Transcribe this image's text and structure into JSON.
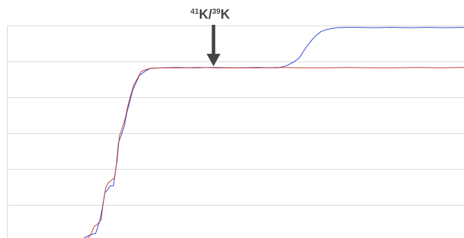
{
  "annotation": {
    "iso_a_mass": "41",
    "iso_a_elem": "K",
    "sep": "/",
    "iso_b_mass": "39",
    "iso_b_elem": "K",
    "color": "#444444"
  },
  "chart_data": {
    "type": "line",
    "title": "",
    "xlabel": "",
    "ylabel": "",
    "grid": true,
    "xlim": [
      0,
      100
    ],
    "ylim": [
      0,
      6
    ],
    "gridlines_y": [
      1,
      2,
      3,
      4,
      5,
      6
    ],
    "annotation_x": 45.2,
    "series": [
      {
        "color": "#2b3fd1",
        "x": [
          15.8,
          17.8,
          18.8,
          19.4,
          20.3,
          20.8,
          21.4,
          22.0,
          22.6,
          23.3,
          23.9,
          24.4,
          25.1,
          25.7,
          26.2,
          26.8,
          27.5,
          28.2,
          29.0,
          30.4,
          31.3,
          33.5,
          37.0,
          41.0,
          45.0,
          50.0,
          55.0,
          59.0,
          60.0,
          61.2,
          62.7,
          63.6,
          64.2,
          65.0,
          66.2,
          67.5,
          68.7,
          70.0,
          71.2,
          72.2,
          74.5,
          76.8,
          80.0,
          84.0,
          88.0,
          92.0,
          96.0,
          100.0
        ],
        "y": [
          0.0,
          0.14,
          0.19,
          0.2,
          0.55,
          0.86,
          1.33,
          1.42,
          1.53,
          1.53,
          2.06,
          2.73,
          2.97,
          3.21,
          3.55,
          3.83,
          4.19,
          4.39,
          4.61,
          4.74,
          4.8,
          4.82,
          4.83,
          4.82,
          4.83,
          4.82,
          4.83,
          4.82,
          4.84,
          4.88,
          4.98,
          5.06,
          5.14,
          5.31,
          5.52,
          5.71,
          5.83,
          5.89,
          5.92,
          5.94,
          5.95,
          5.95,
          5.94,
          5.95,
          5.94,
          5.95,
          5.94,
          5.95
        ]
      },
      {
        "color": "#c0392b",
        "x": [
          17.0,
          18.2,
          19.1,
          19.7,
          20.6,
          21.0,
          21.6,
          22.2,
          22.8,
          23.5,
          24.1,
          24.6,
          25.3,
          25.9,
          26.4,
          27.0,
          27.8,
          28.6,
          29.4,
          30.6,
          31.6,
          34.0,
          38.0,
          42.0,
          46.0,
          50.0,
          55.0,
          60.0,
          65.0,
          70.0,
          75.0,
          80.0,
          85.0,
          90.0,
          95.0,
          100.0
        ],
        "y": [
          0.0,
          0.14,
          0.4,
          0.45,
          0.58,
          0.98,
          1.48,
          1.62,
          1.68,
          1.75,
          2.22,
          2.91,
          3.18,
          3.42,
          3.73,
          4.03,
          4.36,
          4.53,
          4.72,
          4.78,
          4.81,
          4.82,
          4.82,
          4.83,
          4.82,
          4.82,
          4.82,
          4.83,
          4.82,
          4.82,
          4.83,
          4.82,
          4.82,
          4.83,
          4.82,
          4.83
        ]
      }
    ]
  }
}
